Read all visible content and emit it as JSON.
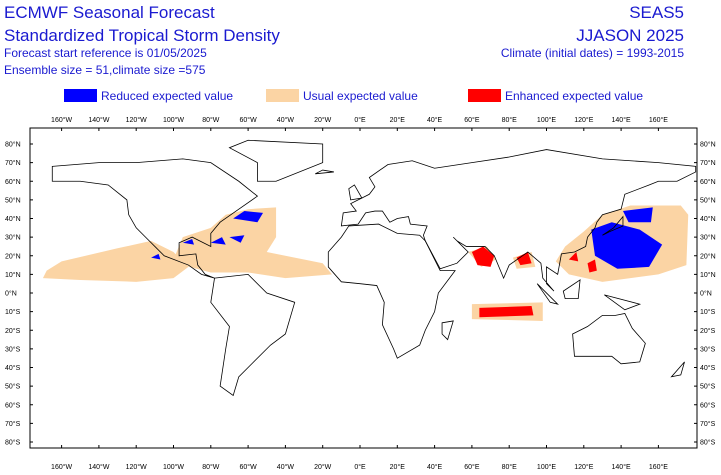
{
  "header": {
    "left": [
      "ECMWF Seasonal Forecast",
      "Standardized Tropical Storm Density",
      "Forecast start reference is 01/05/2025",
      "Ensemble size = 51,climate size =575"
    ],
    "right": [
      "SEAS5",
      "JJASON 2025",
      "Climate (initial dates) = 1993-2015"
    ]
  },
  "legend": [
    "Reduced expected value",
    "Usual expected value",
    "Enhanced expected value"
  ],
  "lon_labels": [
    "160°W",
    "140°W",
    "120°W",
    "100°W",
    "80°W",
    "60°W",
    "40°W",
    "20°W",
    "0°E",
    "20°E",
    "40°E",
    "60°E",
    "80°E",
    "100°E",
    "120°E",
    "140°E",
    "160°E"
  ],
  "lat_labels": [
    "80°N",
    "70°N",
    "60°N",
    "50°N",
    "40°N",
    "30°N",
    "20°N",
    "10°N",
    "0°N",
    "10°S",
    "20°S",
    "30°S",
    "40°S",
    "50°S",
    "60°S",
    "70°S",
    "80°S"
  ]
}
